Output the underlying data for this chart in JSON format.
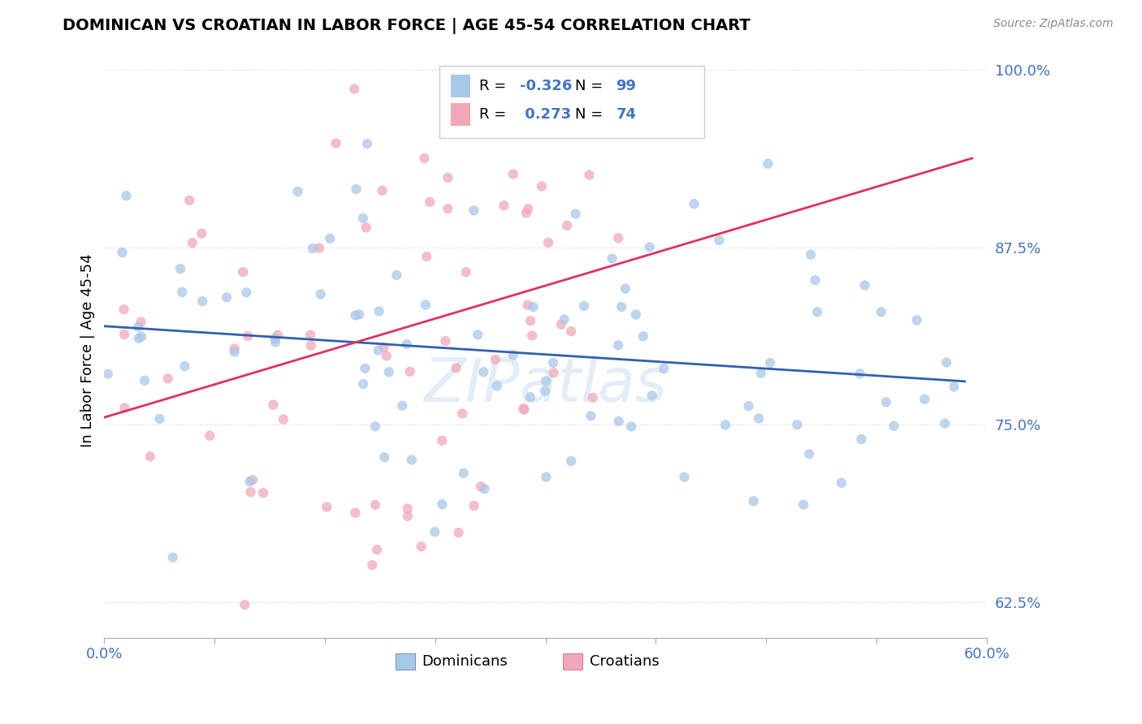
{
  "title": "DOMINICAN VS CROATIAN IN LABOR FORCE | AGE 45-54 CORRELATION CHART",
  "source": "Source: ZipAtlas.com",
  "ylabel_label": "In Labor Force | Age 45-54",
  "legend_label1": "Dominicans",
  "legend_label2": "Croatians",
  "r1": -0.326,
  "n1": 99,
  "r2": 0.273,
  "n2": 74,
  "blue_color": "#a8c8e8",
  "pink_color": "#f0a8b8",
  "blue_line_color": "#3060b0",
  "pink_line_color": "#e03060",
  "dot_size": 80,
  "dot_alpha": 0.75,
  "xmin": 0.0,
  "xmax": 0.6,
  "ymin": 0.6,
  "ymax": 1.005,
  "yticks": [
    0.625,
    0.75,
    0.875,
    1.0
  ],
  "ytick_labels": [
    "62.5%",
    "75.0%",
    "87.5%",
    "100.0%"
  ],
  "xtick_labels_left": "0.0%",
  "xtick_labels_right": "60.0%"
}
